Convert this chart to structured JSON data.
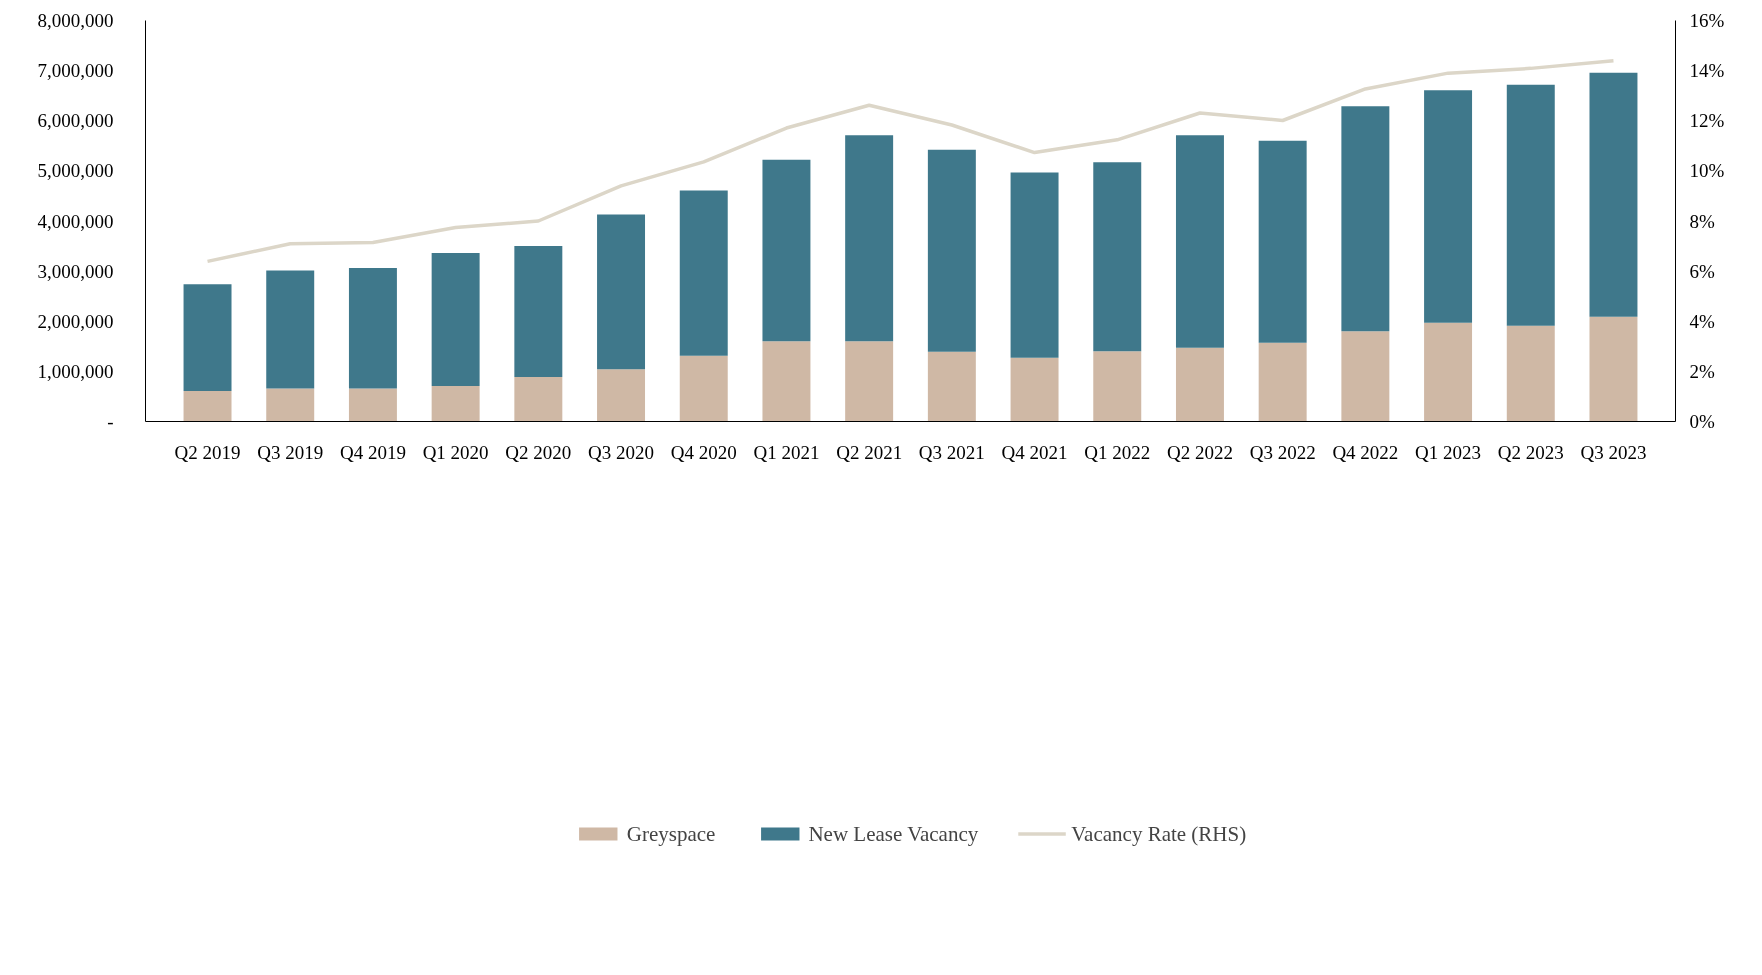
{
  "chart_data": {
    "type": "bar",
    "stacked": true,
    "legend": "bottom",
    "grid": false,
    "categories": [
      "Q2 2019",
      "Q3 2019",
      "Q4 2019",
      "Q1 2020",
      "Q2 2020",
      "Q3 2020",
      "Q4 2020",
      "Q1 2021",
      "Q2 2021",
      "Q3 2021",
      "Q4 2021",
      "Q1 2022",
      "Q2 2022",
      "Q3 2022",
      "Q4 2022",
      "Q1 2023",
      "Q2 2023",
      "Q3 2023"
    ],
    "series": [
      {
        "name": "Greyspace",
        "color": "#cfb8a5",
        "values": [
          610000,
          660000,
          660000,
          710000,
          890000,
          1040000,
          1310000,
          1600000,
          1600000,
          1390000,
          1270000,
          1400000,
          1470000,
          1570000,
          1800000,
          1970000,
          1910000,
          2090000
        ]
      },
      {
        "name": "New Lease Vacancy",
        "color": "#3f788b",
        "values": [
          2130000,
          2350000,
          2400000,
          2650000,
          2610000,
          3090000,
          3300000,
          3620000,
          4110000,
          4030000,
          3700000,
          3770000,
          4240000,
          4030000,
          4490000,
          4640000,
          4810000,
          4870000
        ]
      },
      {
        "name": "Vacancy Rate (RHS)",
        "type": "line",
        "axis": "y2",
        "color": "#dcd6c8",
        "marker": "none",
        "line_style": "solid",
        "values": [
          6.39,
          7.09,
          7.14,
          7.74,
          8.0,
          9.4,
          10.36,
          11.71,
          12.62,
          11.83,
          10.73,
          11.24,
          12.31,
          12.01,
          13.27,
          13.9,
          14.09,
          14.39
        ]
      }
    ],
    "ylim": [
      0,
      8000000
    ],
    "yticks": [
      {
        "value": 0,
        "label": "-"
      },
      {
        "value": 1000000,
        "label": "1,000,000"
      },
      {
        "value": 2000000,
        "label": "2,000,000"
      },
      {
        "value": 3000000,
        "label": "3,000,000"
      },
      {
        "value": 4000000,
        "label": "4,000,000"
      },
      {
        "value": 5000000,
        "label": "5,000,000"
      },
      {
        "value": 6000000,
        "label": "6,000,000"
      },
      {
        "value": 7000000,
        "label": "7,000,000"
      },
      {
        "value": 8000000,
        "label": "8,000,000"
      }
    ],
    "y2lim": [
      0,
      16
    ],
    "y2ticks": [
      {
        "value": 0,
        "label": "0%"
      },
      {
        "value": 2,
        "label": "2%"
      },
      {
        "value": 4,
        "label": "4%"
      },
      {
        "value": 6,
        "label": "6%"
      },
      {
        "value": 8,
        "label": "8%"
      },
      {
        "value": 10,
        "label": "10%"
      },
      {
        "value": 12,
        "label": "12%"
      },
      {
        "value": 14,
        "label": "14%"
      },
      {
        "value": 16,
        "label": "16%"
      }
    ]
  }
}
